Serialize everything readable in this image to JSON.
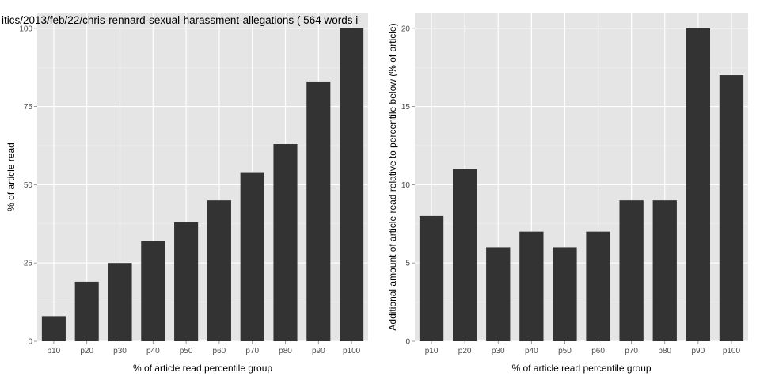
{
  "colors": {
    "panel": "#e5e5e5",
    "grid_major": "#ffffff",
    "grid_minor": "#f2f2f2",
    "bar": "#333333",
    "tick_text": "#4d4d4d"
  },
  "chart_data": [
    {
      "type": "bar",
      "title": "itics/2013/feb/22/chris-rennard-sexual-harassment-allegations ( 564 words i",
      "xlabel": "% of article read percentile group",
      "ylabel": "% of article read",
      "categories": [
        "p10",
        "p20",
        "p30",
        "p40",
        "p50",
        "p60",
        "p70",
        "p80",
        "p90",
        "p100"
      ],
      "values": [
        8,
        19,
        25,
        32,
        38,
        45,
        54,
        63,
        83,
        100
      ],
      "ylim": [
        0,
        105
      ],
      "yticks": [
        0,
        25,
        50,
        75,
        100
      ],
      "ytick_labels": [
        "0",
        "25",
        "50",
        "75",
        "100"
      ],
      "grid": true
    },
    {
      "type": "bar",
      "title": "",
      "xlabel": "% of article read percentile group",
      "ylabel": "Additional amount of article read relative to percentile below (% of article)",
      "categories": [
        "p10",
        "p20",
        "p30",
        "p40",
        "p50",
        "p60",
        "p70",
        "p80",
        "p90",
        "p100"
      ],
      "values": [
        8,
        11,
        6,
        7,
        6,
        7,
        9,
        9,
        20,
        17
      ],
      "ylim": [
        0,
        21
      ],
      "yticks": [
        0,
        5,
        10,
        15,
        20
      ],
      "ytick_labels": [
        "0",
        "5",
        "10",
        "15",
        "20"
      ],
      "grid": true
    }
  ]
}
